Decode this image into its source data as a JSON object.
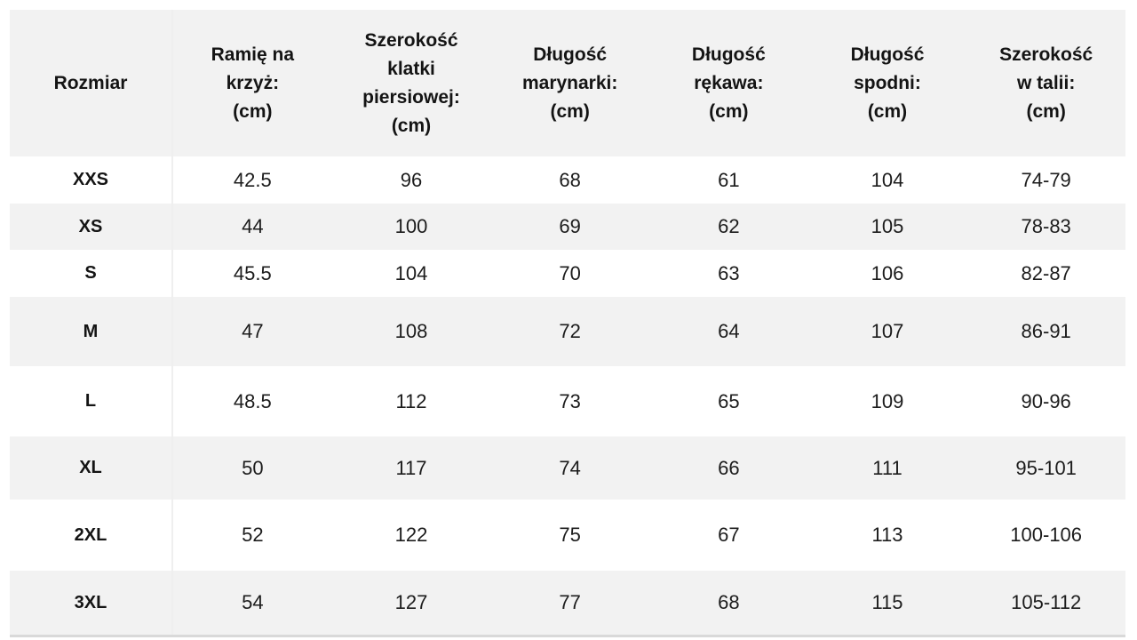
{
  "chart_data": {
    "type": "table",
    "columns": [
      "Rozmiar",
      "Ramię na\nkrzyż:\n(cm)",
      "Szerokość\nklatki\npiersiowej:\n(cm)",
      "Długość\nmarynarki:\n(cm)",
      "Długość\nrękawa:\n(cm)",
      "Długość\nspodni:\n(cm)",
      "Szerokość\nw talii:\n(cm)"
    ],
    "rows": [
      {
        "size": "XXS",
        "values": [
          "42.5",
          "96",
          "68",
          "61",
          "104",
          "74-79"
        ]
      },
      {
        "size": "XS",
        "values": [
          "44",
          "100",
          "69",
          "62",
          "105",
          "78-83"
        ]
      },
      {
        "size": "S",
        "values": [
          "45.5",
          "104",
          "70",
          "63",
          "106",
          "82-87"
        ]
      },
      {
        "size": "M",
        "values": [
          "47",
          "108",
          "72",
          "64",
          "107",
          "86-91"
        ]
      },
      {
        "size": "L",
        "values": [
          "48.5",
          "112",
          "73",
          "65",
          "109",
          "90-96"
        ]
      },
      {
        "size": "XL",
        "values": [
          "50",
          "117",
          "74",
          "66",
          "111",
          "95-101"
        ]
      },
      {
        "size": "2XL",
        "values": [
          "52",
          "122",
          "75",
          "67",
          "113",
          "100-106"
        ]
      },
      {
        "size": "3XL",
        "values": [
          "54",
          "127",
          "77",
          "68",
          "115",
          "105-112"
        ]
      }
    ]
  },
  "colors": {
    "stripe_background": "#f2f2f2",
    "row_background": "#ffffff",
    "text": "#1c1c1c",
    "column_divider": "#efefef",
    "bottom_border": "#d9d9d9"
  }
}
